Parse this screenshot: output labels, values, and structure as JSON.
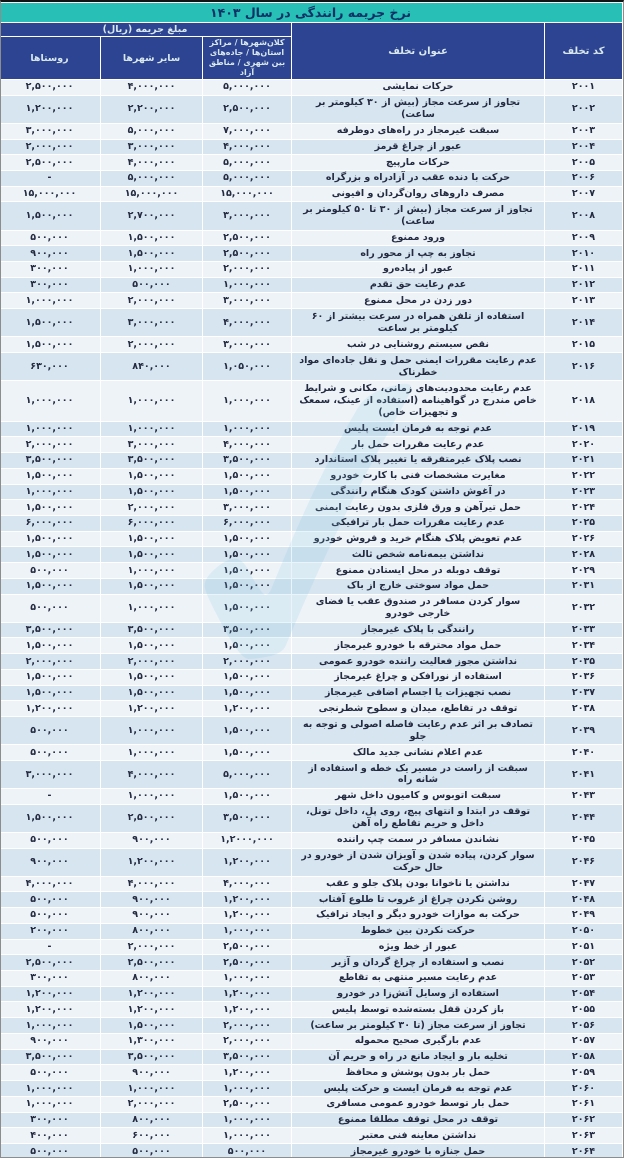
{
  "title": "نرخ جریمه رانندگی در سال ۱۴۰۳",
  "watermark_icon": "✓",
  "colors": {
    "title_bg": "#27bfb6",
    "header_bg": "#2c4492",
    "row_light": "#eef3f8",
    "row_alt": "#d6e5f0",
    "separator": "#ffffff",
    "title_text": "#0e3166",
    "header_text": "#d9e8ec",
    "cell_text": "#242b41"
  },
  "header": {
    "fine_amount_group": "مبلغ جریمه (ریال)",
    "columns": {
      "code": "کد تخلف",
      "violation": "عنوان تخلف",
      "metro": "کلان‌شهرها / مراکز استان‌ها / جاده‌های بین شهری / مناطق آزاد",
      "other_cities": "سایر شهرها",
      "villages": "روستاها"
    }
  },
  "rows": [
    {
      "code": "۲۰۰۱",
      "violation": "حرکات نمایشی",
      "metro": "۵,۰۰۰,۰۰۰",
      "other": "۴,۰۰۰,۰۰۰",
      "village": "۲,۵۰۰,۰۰۰"
    },
    {
      "code": "۲۰۰۲",
      "violation": "تجاوز از سرعت مجاز (بیش از ۳۰ کیلومتر بر ساعت)",
      "metro": "۲,۵۰۰,۰۰۰",
      "other": "۲,۲۰۰,۰۰۰",
      "village": "۱,۲۰۰,۰۰۰"
    },
    {
      "code": "۲۰۰۳",
      "violation": "سبقت غیرمجاز در راه‌های دوطرفه",
      "metro": "۷,۰۰۰,۰۰۰",
      "other": "۵,۰۰۰,۰۰۰",
      "village": "۳,۰۰۰,۰۰۰"
    },
    {
      "code": "۲۰۰۴",
      "violation": "عبور از چراغ قرمز",
      "metro": "۴,۰۰۰,۰۰۰",
      "other": "۳,۰۰۰,۰۰۰",
      "village": "۲,۰۰۰,۰۰۰"
    },
    {
      "code": "۲۰۰۵",
      "violation": "حرکات مارپیچ",
      "metro": "۵,۰۰۰,۰۰۰",
      "other": "۴,۰۰۰,۰۰۰",
      "village": "۲,۵۰۰,۰۰۰"
    },
    {
      "code": "۲۰۰۶",
      "violation": "حرکت با دنده عقب در آزادراه و بزرگراه",
      "metro": "۵,۰۰۰,۰۰۰",
      "other": "۵,۰۰۰,۰۰۰",
      "village": "-"
    },
    {
      "code": "۲۰۰۷",
      "violation": "مصرف داروهای روان‌گردان و افیونی",
      "metro": "۱۵,۰۰۰,۰۰۰",
      "other": "۱۵,۰۰۰,۰۰۰",
      "village": "۱۵,۰۰۰,۰۰۰"
    },
    {
      "code": "۲۰۰۸",
      "violation": "تجاوز از سرعت مجاز (بیش از ۳۰ تا ۵۰ کیلومتر بر ساعت)",
      "metro": "۳,۰۰۰,۰۰۰",
      "other": "۲,۷۰۰,۰۰۰",
      "village": "۱,۵۰۰,۰۰۰"
    },
    {
      "code": "۲۰۰۹",
      "violation": "ورود ممنوع",
      "metro": "۲,۵۰۰,۰۰۰",
      "other": "۱,۵۰۰,۰۰۰",
      "village": "۵۰۰,۰۰۰"
    },
    {
      "code": "۲۰۱۰",
      "violation": "تجاوز به چپ از محور راه",
      "metro": "۲,۵۰۰,۰۰۰",
      "other": "۱,۵۰۰,۰۰۰",
      "village": "۹۰۰,۰۰۰"
    },
    {
      "code": "۲۰۱۱",
      "violation": "عبور از پیاده‌رو",
      "metro": "۲,۰۰۰,۰۰۰",
      "other": "۱,۰۰۰,۰۰۰",
      "village": "۳۰۰,۰۰۰"
    },
    {
      "code": "۲۰۱۲",
      "violation": "عدم رعایت حق تقدم",
      "metro": "۱,۰۰۰,۰۰۰",
      "other": "۵۰۰,۰۰۰",
      "village": "۳۰۰,۰۰۰"
    },
    {
      "code": "۲۰۱۳",
      "violation": "دور زدن در محل ممنوع",
      "metro": "۳,۰۰۰,۰۰۰",
      "other": "۲,۰۰۰,۰۰۰",
      "village": "۱,۰۰۰,۰۰۰"
    },
    {
      "code": "۲۰۱۴",
      "violation": "استفاده از تلفن همراه در سرعت بیشتر از ۶۰ کیلومتر بر ساعت",
      "metro": "۴,۰۰۰,۰۰۰",
      "other": "۳,۰۰۰,۰۰۰",
      "village": "۱,۵۰۰,۰۰۰"
    },
    {
      "code": "۲۰۱۵",
      "violation": "نقص سیستم روشنایی در شب",
      "metro": "۳,۰۰۰,۰۰۰",
      "other": "۲,۰۰۰,۰۰۰",
      "village": "۱,۵۰۰,۰۰۰"
    },
    {
      "code": "۲۰۱۶",
      "violation": "عدم رعایت مقررات ایمنی حمل و نقل جاده‌ای مواد خطرناک",
      "metro": "۱,۰۵۰,۰۰۰",
      "other": "۸۴۰,۰۰۰",
      "village": "۶۳۰,۰۰۰"
    },
    {
      "code": "۲۰۱۸",
      "violation": "عدم رعایت محدودیت‌های زمانی، مکانی و شرایط خاص مندرج در گواهینامه (استفاده از عینک، سمعک و تجهیزات خاص)",
      "metro": "۱,۰۰۰,۰۰۰",
      "other": "۱,۰۰۰,۰۰۰",
      "village": "۱,۰۰۰,۰۰۰"
    },
    {
      "code": "۲۰۱۹",
      "violation": "عدم توجه به فرمان ایست پلیس",
      "metro": "۱,۰۰۰,۰۰۰",
      "other": "۱,۰۰۰,۰۰۰",
      "village": "۱,۰۰۰,۰۰۰"
    },
    {
      "code": "۲۰۲۰",
      "violation": "عدم رعایت مقررات حمل بار",
      "metro": "۴,۰۰۰,۰۰۰",
      "other": "۳,۰۰۰,۰۰۰",
      "village": "۲,۰۰۰,۰۰۰"
    },
    {
      "code": "۲۰۲۱",
      "violation": "نصب پلاک غیرمتفرقه یا تغییر پلاک استاندارد",
      "metro": "۳,۵۰۰,۰۰۰",
      "other": "۳,۵۰۰,۰۰۰",
      "village": "۳,۵۰۰,۰۰۰"
    },
    {
      "code": "۲۰۲۲",
      "violation": "مغایرت مشخصات فنی با کارت خودرو",
      "metro": "۱,۵۰۰,۰۰۰",
      "other": "۱,۵۰۰,۰۰۰",
      "village": "۱,۵۰۰,۰۰۰"
    },
    {
      "code": "۲۰۲۳",
      "violation": "در آغوش داشتن کودک هنگام رانندگی",
      "metro": "۱,۵۰۰,۰۰۰",
      "other": "۱,۵۰۰,۰۰۰",
      "village": "۱,۰۰۰,۰۰۰"
    },
    {
      "code": "۲۰۲۴",
      "violation": "حمل تیرآهن و ورق فلزی بدون رعایت ایمنی",
      "metro": "۳,۰۰۰,۰۰۰",
      "other": "۲,۰۰۰,۰۰۰",
      "village": "۱,۵۰۰,۰۰۰"
    },
    {
      "code": "۲۰۲۵",
      "violation": "عدم رعایت مقررات حمل بار ترافیکی",
      "metro": "۶,۰۰۰,۰۰۰",
      "other": "۶,۰۰۰,۰۰۰",
      "village": "۶,۰۰۰,۰۰۰"
    },
    {
      "code": "۲۰۲۶",
      "violation": "عدم تعویض پلاک هنگام خرید و فروش خودرو",
      "metro": "۱,۵۰۰,۰۰۰",
      "other": "۱,۵۰۰,۰۰۰",
      "village": "۱,۵۰۰,۰۰۰"
    },
    {
      "code": "۲۰۲۸",
      "violation": "نداشتن بیمه‌نامه شخص ثالث",
      "metro": "۱,۵۰۰,۰۰۰",
      "other": "۱,۵۰۰,۰۰۰",
      "village": "۱,۵۰۰,۰۰۰"
    },
    {
      "code": "۲۰۲۹",
      "violation": "توقف دوبله در محل ایستادن ممنوع",
      "metro": "۱,۵۰۰,۰۰۰",
      "other": "۱,۰۰۰,۰۰۰",
      "village": "۵۰۰,۰۰۰"
    },
    {
      "code": "۲۰۳۱",
      "violation": "حمل مواد سوختی خارج از باک",
      "metro": "۱,۵۰۰,۰۰۰",
      "other": "۱,۵۰۰,۰۰۰",
      "village": "۱,۵۰۰,۰۰۰"
    },
    {
      "code": "۲۰۳۲",
      "violation": "سوار کردن مسافر در صندوق عقب یا فضای خارجی خودرو",
      "metro": "۱,۵۰۰,۰۰۰",
      "other": "۱,۰۰۰,۰۰۰",
      "village": "۵۰۰,۰۰۰"
    },
    {
      "code": "۲۰۳۳",
      "violation": "رانندگی با پلاک غیرمجاز",
      "metro": "۳,۵۰۰,۰۰۰",
      "other": "۳,۵۰۰,۰۰۰",
      "village": "۳,۵۰۰,۰۰۰"
    },
    {
      "code": "۲۰۳۴",
      "violation": "حمل مواد محترقه با خودرو غیرمجاز",
      "metro": "۱,۵۰۰,۰۰۰",
      "other": "۱,۵۰۰,۰۰۰",
      "village": "۱,۵۰۰,۰۰۰"
    },
    {
      "code": "۲۰۳۵",
      "violation": "نداشتن مجوز فعالیت راننده خودرو عمومی",
      "metro": "۲,۰۰۰,۰۰۰",
      "other": "۲,۰۰۰,۰۰۰",
      "village": "۲,۰۰۰,۰۰۰"
    },
    {
      "code": "۲۰۳۶",
      "violation": "استفاده از نورافکن و چراغ غیرمجاز",
      "metro": "۱,۵۰۰,۰۰۰",
      "other": "۱,۵۰۰,۰۰۰",
      "village": "۱,۵۰۰,۰۰۰"
    },
    {
      "code": "۲۰۳۷",
      "violation": "نصب تجهیزات یا اجسام اضافی غیرمجاز",
      "metro": "۱,۵۰۰,۰۰۰",
      "other": "۱,۵۰۰,۰۰۰",
      "village": "۱,۵۰۰,۰۰۰"
    },
    {
      "code": "۲۰۳۸",
      "violation": "توقف در تقاطع، میدان و سطوح شطرنجی",
      "metro": "۱,۲۰۰,۰۰۰",
      "other": "۱,۲۰۰,۰۰۰",
      "village": "۱,۲۰۰,۰۰۰"
    },
    {
      "code": "۲۰۳۹",
      "violation": "تصادف بر اثر عدم رعایت فاصله اصولی و توجه به جلو",
      "metro": "۱,۵۰۰,۰۰۰",
      "other": "۱,۰۰۰,۰۰۰",
      "village": "۵۰۰,۰۰۰"
    },
    {
      "code": "۲۰۴۰",
      "violation": "عدم اعلام نشانی جدید مالک",
      "metro": "۱,۵۰۰,۰۰۰",
      "other": "۱,۰۰۰,۰۰۰",
      "village": "۵۰۰,۰۰۰"
    },
    {
      "code": "۲۰۴۱",
      "violation": "سبقت از راست در مسیر یک خطه و استفاده از شانه راه",
      "metro": "۵,۰۰۰,۰۰۰",
      "other": "۴,۰۰۰,۰۰۰",
      "village": "۳,۰۰۰,۰۰۰"
    },
    {
      "code": "۲۰۴۳",
      "violation": "سبقت اتوبوس و کامیون داخل شهر",
      "metro": "۱,۵۰۰,۰۰۰",
      "other": "۱,۰۰۰,۰۰۰",
      "village": "-"
    },
    {
      "code": "۲۰۴۴",
      "violation": "توقف در ابتدا و انتهای پیچ، روی پل، داخل تونل، داخل و حریم تقاطع راه آهن",
      "metro": "۳,۵۰۰,۰۰۰",
      "other": "۲,۵۰۰,۰۰۰",
      "village": "۱,۵۰۰,۰۰۰"
    },
    {
      "code": "۲۰۴۵",
      "violation": "نشاندن مسافر در سمت چپ راننده",
      "metro": "۱,۲۰۰۰,۰۰۰",
      "other": "۹۰۰,۰۰۰",
      "village": "۵۰۰,۰۰۰"
    },
    {
      "code": "۲۰۴۶",
      "violation": "سوار کردن، پیاده شدن و آویزان شدن از خودرو در حال حرکت",
      "metro": "۱,۲۰۰,۰۰۰",
      "other": "۱,۲۰۰,۰۰۰",
      "village": "۹۰۰,۰۰۰"
    },
    {
      "code": "۲۰۴۷",
      "violation": "نداشتن یا ناخوانا بودن پلاک جلو و عقب",
      "metro": "۴,۰۰۰,۰۰۰",
      "other": "۴,۰۰۰,۰۰۰",
      "village": "۴,۰۰۰,۰۰۰"
    },
    {
      "code": "۲۰۴۸",
      "violation": "روشن نکردن چراغ از غروب تا طلوع آفتاب",
      "metro": "۱,۲۰۰,۰۰۰",
      "other": "۹۰۰,۰۰۰",
      "village": "۵۰۰,۰۰۰"
    },
    {
      "code": "۲۰۴۹",
      "violation": "حرکت به موازات خودرو دیگر و ایجاد ترافیک",
      "metro": "۱,۲۰۰,۰۰۰",
      "other": "۹۰۰,۰۰۰",
      "village": "۵۰۰,۰۰۰"
    },
    {
      "code": "۲۰۵۰",
      "violation": "حرکت نکردن بین خطوط",
      "metro": "۱,۰۰۰,۰۰۰",
      "other": "۸۰۰,۰۰۰",
      "village": "۲۰۰,۰۰۰"
    },
    {
      "code": "۲۰۵۱",
      "violation": "عبور از خط ویژه",
      "metro": "۲,۵۰۰,۰۰۰",
      "other": "۲,۰۰۰,۰۰۰",
      "village": "-"
    },
    {
      "code": "۲۰۵۲",
      "violation": "نصب و استفاده از چراغ گردان و آژیر",
      "metro": "۲,۵۰۰,۰۰۰",
      "other": "۲,۵۰۰,۰۰۰",
      "village": "۲,۵۰۰,۰۰۰"
    },
    {
      "code": "۲۰۵۳",
      "violation": "عدم رعایت مسیر منتهی به تقاطع",
      "metro": "۱,۰۰۰,۰۰۰",
      "other": "۸۰۰,۰۰۰",
      "village": "۳۰۰,۰۰۰"
    },
    {
      "code": "۲۰۵۴",
      "violation": "استفاده از وسایل آتش‌زا در خودرو",
      "metro": "۱,۲۰۰,۰۰۰",
      "other": "۱,۲۰۰,۰۰۰",
      "village": "۱,۲۰۰,۰۰۰"
    },
    {
      "code": "۲۰۵۵",
      "violation": "باز کردن قفل بسته‌شده توسط پلیس",
      "metro": "۱,۲۰۰,۰۰۰",
      "other": "۱,۲۰۰,۰۰۰",
      "village": "۱,۲۰۰,۰۰۰"
    },
    {
      "code": "۲۰۵۶",
      "violation": "تجاوز از سرعت مجاز (تا ۳۰ کیلومتر بر ساعت)",
      "metro": "۲,۰۰۰,۰۰۰",
      "other": "۱,۵۰۰,۰۰۰",
      "village": "۱,۰۰۰,۰۰۰"
    },
    {
      "code": "۲۰۵۷",
      "violation": "عدم بارگیری صحیح محموله",
      "metro": "۲,۰۰۰,۰۰۰",
      "other": "۱,۳۰۰,۰۰۰",
      "village": "۹۰۰,۰۰۰"
    },
    {
      "code": "۲۰۵۸",
      "violation": "تخلیه بار و ایجاد مانع در راه و حریم آن",
      "metro": "۳,۵۰۰,۰۰۰",
      "other": "۳,۵۰۰,۰۰۰",
      "village": "۳,۵۰۰,۰۰۰"
    },
    {
      "code": "۲۰۵۹",
      "violation": "حمل بار بدون پوشش و محافظ",
      "metro": "۱,۲۰۰,۰۰۰",
      "other": "۹۰۰,۰۰۰",
      "village": "۵۰۰,۰۰۰"
    },
    {
      "code": "۲۰۶۰",
      "violation": "عدم توجه به فرمان ایست و حرکت پلیس",
      "metro": "۱,۰۰۰,۰۰۰",
      "other": "۱,۰۰۰,۰۰۰",
      "village": "۱,۰۰۰,۰۰۰"
    },
    {
      "code": "۲۰۶۱",
      "violation": "حمل بار توسط خودرو عمومی مسافری",
      "metro": "۲,۵۰۰,۰۰۰",
      "other": "۲,۰۰۰,۰۰۰",
      "village": "۱,۰۰۰,۰۰۰"
    },
    {
      "code": "۲۰۶۲",
      "violation": "توقف در محل توقف مطلقا ممنوع",
      "metro": "۱,۰۰۰,۰۰۰",
      "other": "۸۰۰,۰۰۰",
      "village": "۳۰۰,۰۰۰"
    },
    {
      "code": "۲۰۶۳",
      "violation": "نداشتن معاینه فنی معتبر",
      "metro": "۱,۰۰۰,۰۰۰",
      "other": "۶۰۰,۰۰۰",
      "village": "۴۰۰,۰۰۰"
    },
    {
      "code": "۲۰۶۴",
      "violation": "حمل جنازه با خودرو غیرمجاز",
      "metro": "۵۰۰,۰۰۰",
      "other": "۵۰۰,۰۰۰",
      "village": "۵۰۰,۰۰۰"
    }
  ]
}
